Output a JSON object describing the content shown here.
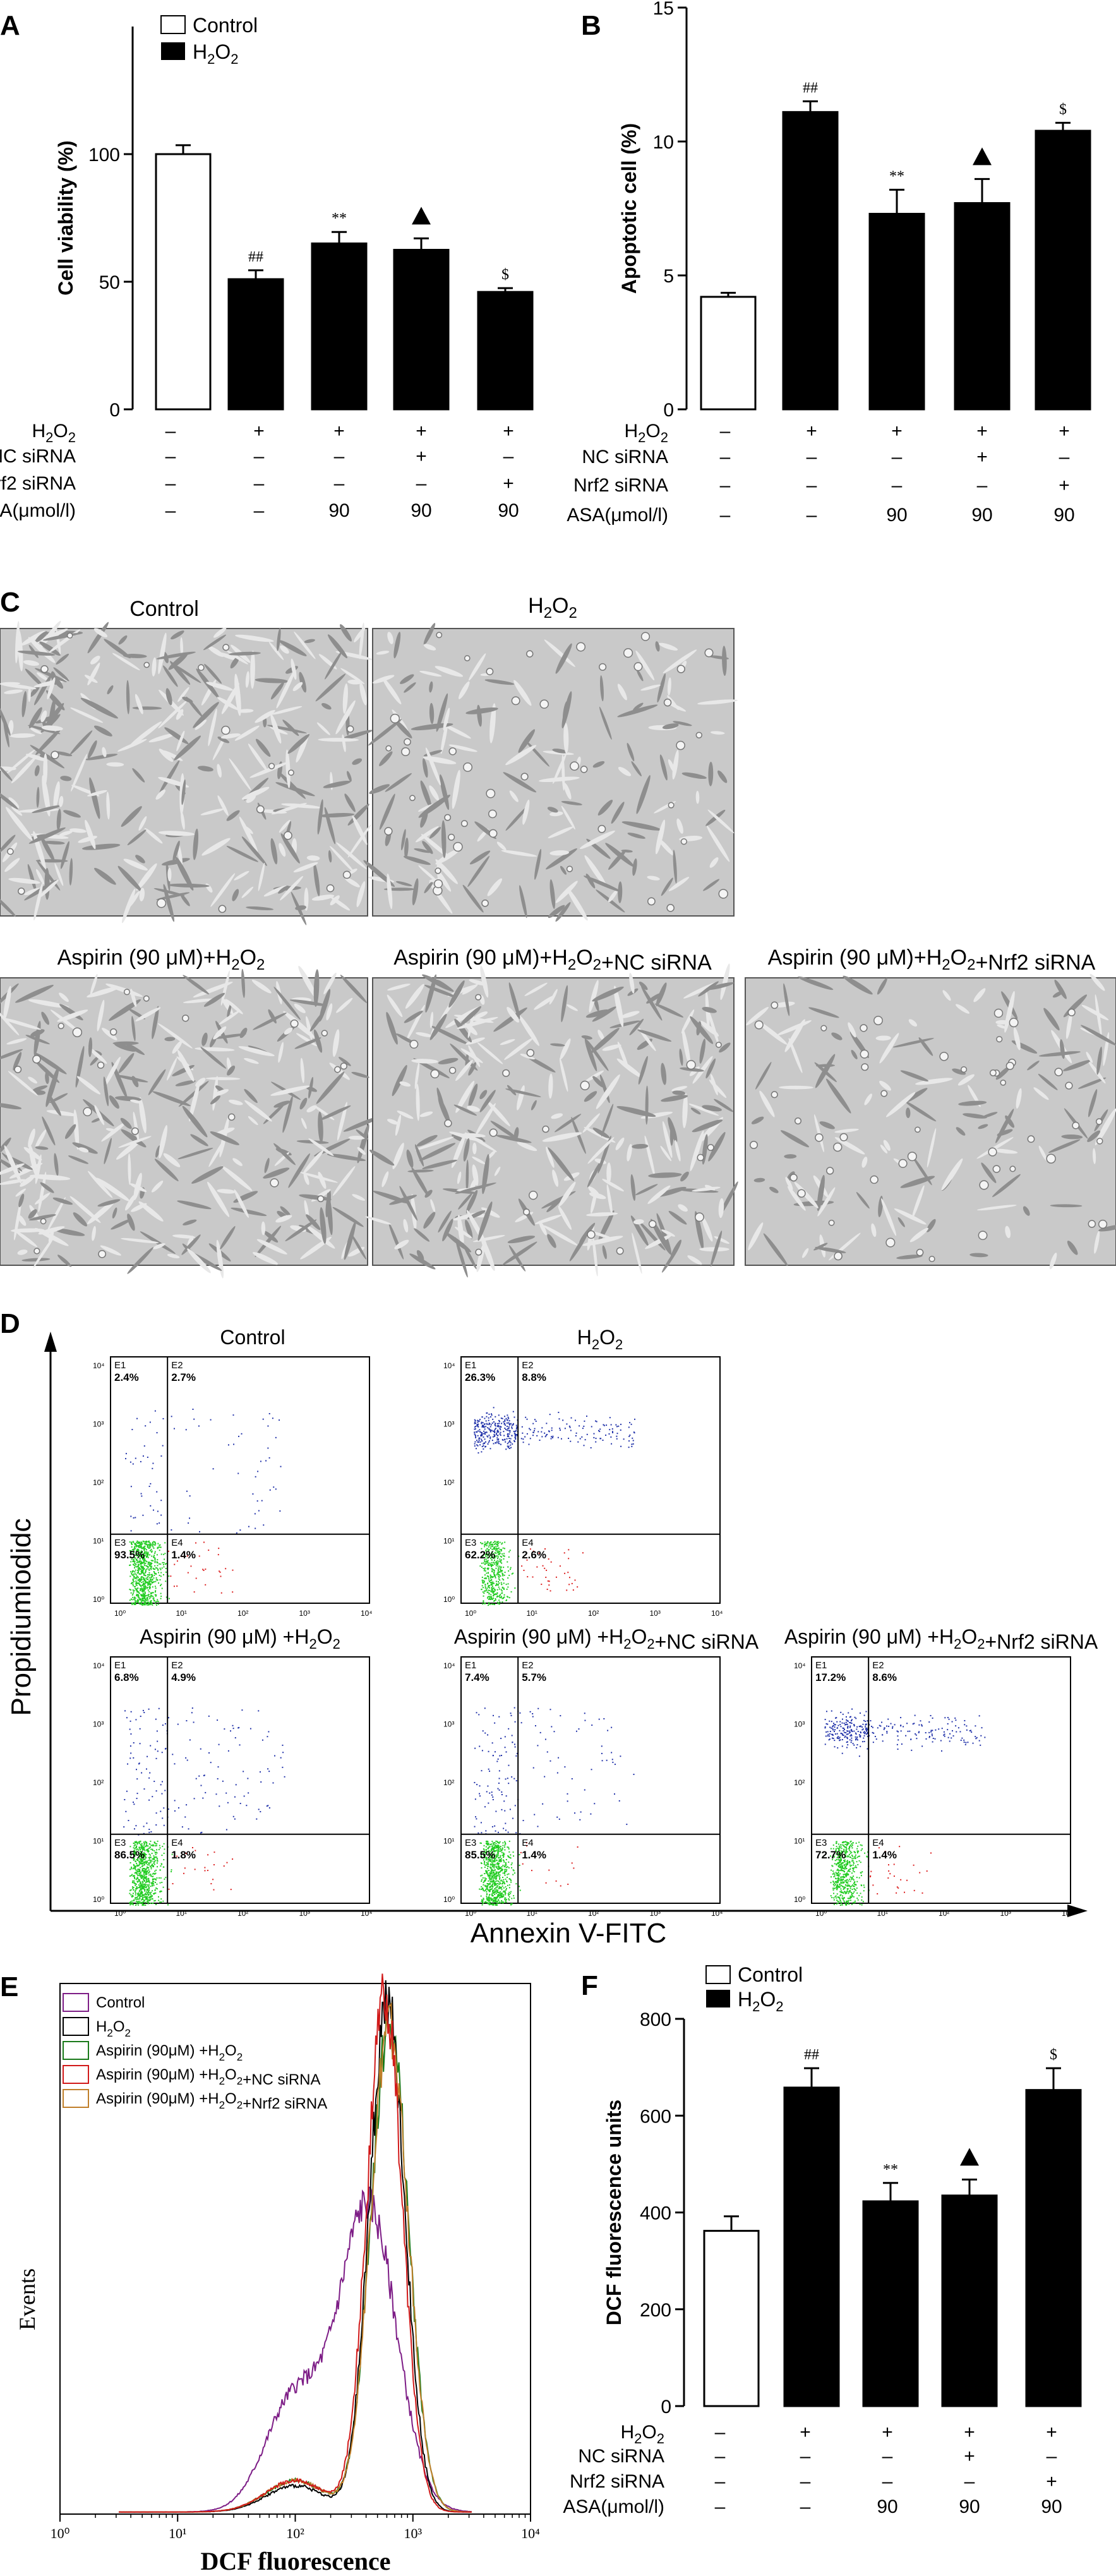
{
  "panels": {
    "A": {
      "letter": "A"
    },
    "B": {
      "letter": "B"
    },
    "C": {
      "letter": "C"
    },
    "D": {
      "letter": "D"
    },
    "E": {
      "letter": "E"
    },
    "F": {
      "letter": "F"
    }
  },
  "legend": {
    "control": "Control",
    "h2o2": "H2O2"
  },
  "treatment_rows": {
    "h2o2": "H2O2",
    "nc": "NC siRNA",
    "nrf2": "Nrf2 siRNA",
    "asa": "ASA(μmol/l)",
    "cells": [
      [
        "–",
        "+",
        "+",
        "+",
        "+"
      ],
      [
        "–",
        "–",
        "–",
        "+",
        "–"
      ],
      [
        "–",
        "–",
        "–",
        "–",
        "+"
      ],
      [
        "–",
        "–",
        "90",
        "90",
        "90"
      ]
    ]
  },
  "panelC": {
    "labels": [
      "Control",
      "H2O2",
      "Aspirin (90 μM)+H2O2",
      "Aspirin (90 μM)+H2O2+NC siRNA",
      "Aspirin (90 μM)+H2O2+Nrf2 siRNA"
    ]
  },
  "panelD": {
    "ylabel": "Propidiumiodidc",
    "xlabel": "Annexin V-FITC",
    "plots": [
      {
        "title": "Control",
        "q": [
          "2.4%",
          "2.7%",
          "93.5%",
          "1.4%"
        ]
      },
      {
        "title": "H2O2",
        "q": [
          "26.3%",
          "8.8%",
          "62.2%",
          "2.6%"
        ]
      },
      {
        "title": "Aspirin (90 μM) +H2O2",
        "q": [
          "6.8%",
          "4.9%",
          "86.5%",
          "1.8%"
        ]
      },
      {
        "title": "Aspirin (90 μM) +H2O2+NC siRNA",
        "q": [
          "7.4%",
          "5.7%",
          "85.5%",
          "1.4%"
        ]
      },
      {
        "title": "Aspirin (90 μM) +H2O2+Nrf2 siRNA",
        "q": [
          "17.2%",
          "8.6%",
          "72.7%",
          "1.4%"
        ]
      }
    ],
    "quadrant_names": [
      "E1",
      "E2",
      "E3",
      "E4"
    ],
    "tick_labels": [
      "10⁰",
      "10¹",
      "10²",
      "10³",
      "10⁴"
    ]
  },
  "panelE": {
    "ylabel": "Events",
    "xlabel": "DCF fluorescence",
    "legend": [
      "Control",
      "H2O2",
      "Aspirin (90μM) +H2O2",
      "Aspirin (90μM) +H2O2+NC siRNA",
      "Aspirin (90μM) +H2O2+Nrf2 siRNA"
    ],
    "legend_colors": [
      "#7d1d86",
      "#000000",
      "#1a7a1a",
      "#d11a1a",
      "#c07f2a"
    ],
    "x_ticks": [
      "10⁰",
      "10¹",
      "10²",
      "10³",
      "10⁴"
    ]
  },
  "chart_data": [
    {
      "type": "bar",
      "ylabel": "Cell viability (%)",
      "ylim": [
        0,
        150
      ],
      "yticks": [
        "0",
        "50",
        "100"
      ],
      "values": [
        100,
        51,
        65,
        62.5,
        46
      ],
      "errors": [
        3.5,
        3.5,
        4.5,
        4.5,
        1.5
      ],
      "marks": [
        "",
        "##",
        "**",
        "▲",
        "$"
      ],
      "fill": [
        "white",
        "black",
        "black",
        "black",
        "black"
      ]
    },
    {
      "type": "bar",
      "ylabel": "Apoptotic cell (%)",
      "ylim": [
        0,
        15
      ],
      "yticks": [
        "0",
        "5",
        "10",
        "15"
      ],
      "values": [
        4.2,
        11.1,
        7.3,
        7.7,
        10.4
      ],
      "errors": [
        0.15,
        0.4,
        0.9,
        0.9,
        0.3
      ],
      "marks": [
        "",
        "##",
        "**",
        "▲",
        "$"
      ],
      "fill": [
        "white",
        "black",
        "black",
        "black",
        "black"
      ]
    },
    {
      "type": "bar",
      "ylabel": "DCF fluorescence units",
      "ylim": [
        0,
        800
      ],
      "yticks": [
        "0",
        "200",
        "400",
        "600",
        "800"
      ],
      "values": [
        362,
        658,
        423,
        435,
        653
      ],
      "errors": [
        30,
        40,
        38,
        33,
        45
      ],
      "marks": [
        "",
        "##",
        "**",
        "▲",
        "$"
      ],
      "fill": [
        "white",
        "black",
        "black",
        "black",
        "black"
      ]
    }
  ]
}
